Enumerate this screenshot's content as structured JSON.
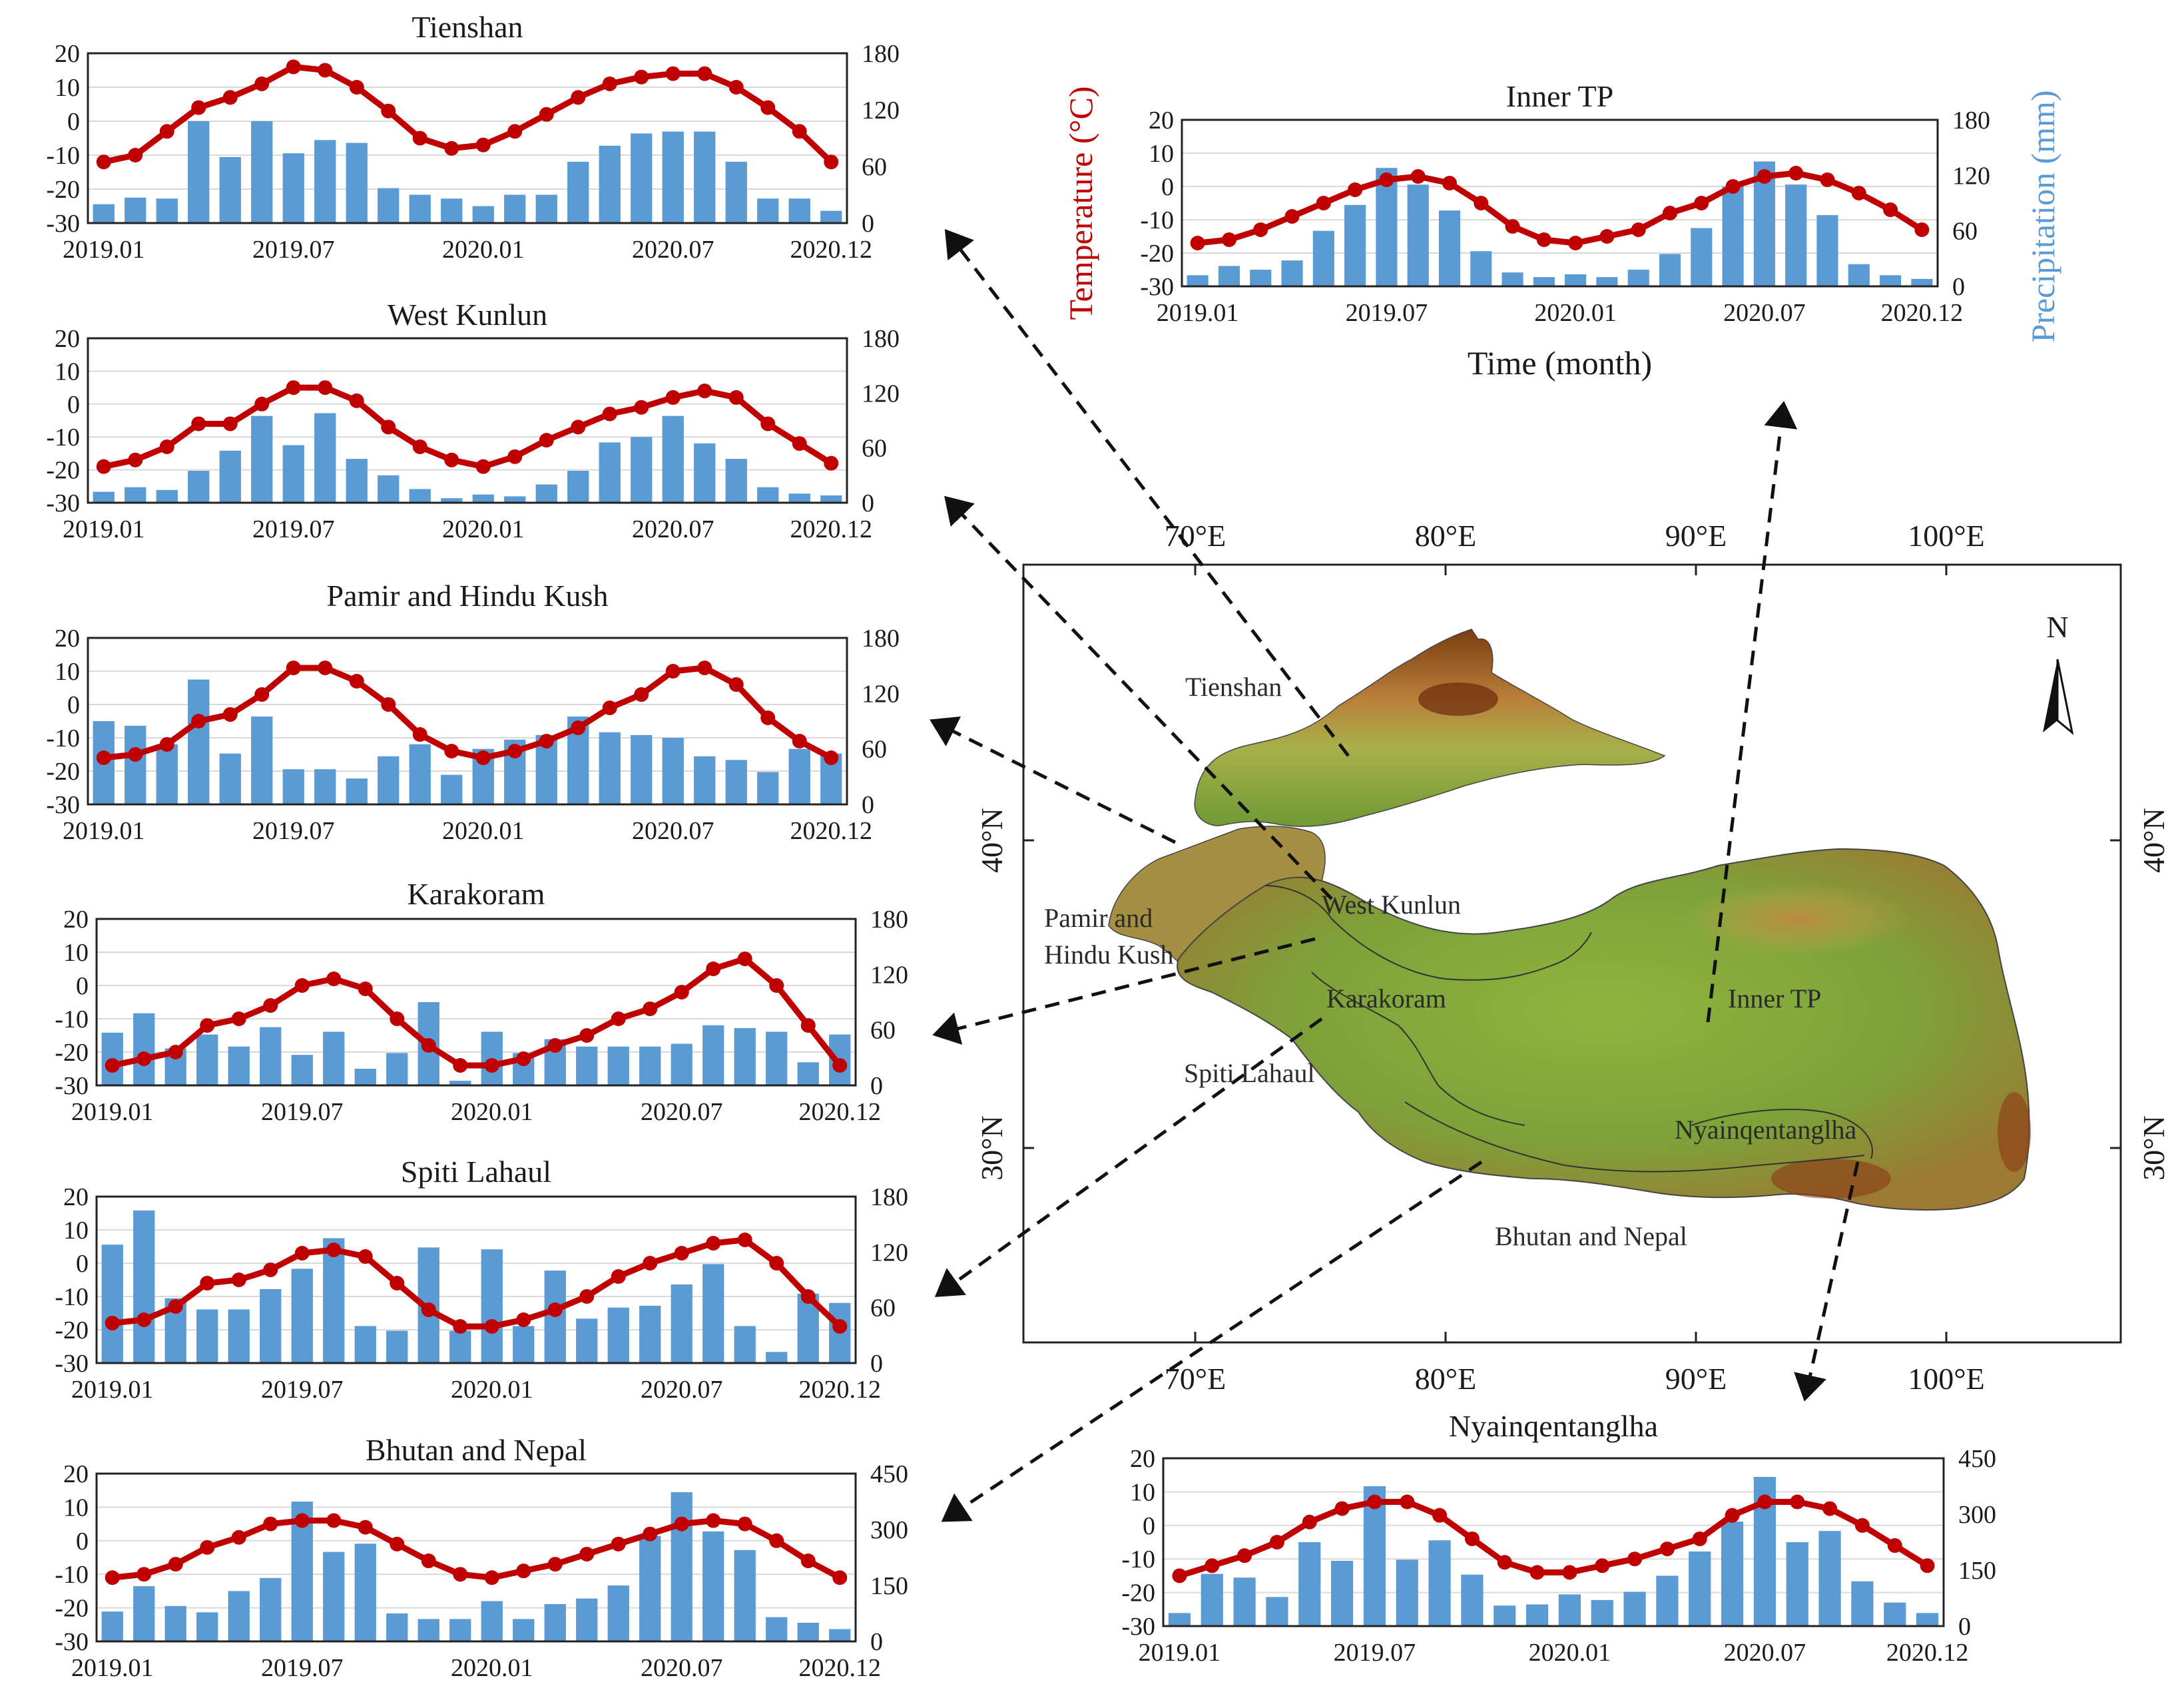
{
  "colors": {
    "bar": "#5b9bd5",
    "line": "#c00000",
    "grid": "#d9d9d9",
    "arrow": "#111111",
    "temp_axis_label": "#c00000",
    "precip_axis_label": "#5b9bd5"
  },
  "chart_data": [
    {
      "id": "tienshan",
      "type": "bar+line",
      "title": "Tienshan",
      "x_tick_labels": [
        "2019.01",
        "2019.07",
        "2020.01",
        "2020.07",
        "2020.12"
      ],
      "y_left": {
        "range": [
          -30,
          20
        ],
        "ticks": [
          "20",
          "10",
          "0",
          "-10",
          "-20",
          "-30"
        ]
      },
      "y_right": {
        "range": [
          0,
          180
        ],
        "ticks": [
          "180",
          "120",
          "60",
          "0"
        ]
      },
      "precipitation_mm": [
        20,
        27,
        26,
        108,
        70,
        108,
        74,
        88,
        85,
        37,
        30,
        26,
        18,
        30,
        30,
        65,
        82,
        95,
        97,
        97,
        65,
        26,
        26,
        13
      ],
      "temperature_c": [
        -12,
        -10,
        -3,
        4,
        7,
        11,
        16,
        15,
        10,
        3,
        -5,
        -8,
        -7,
        -3,
        2,
        7,
        11,
        13,
        14,
        14,
        10,
        4,
        -3,
        -12
      ]
    },
    {
      "id": "west-kunlun",
      "type": "bar+line",
      "title": "West Kunlun",
      "x_tick_labels": [
        "2019.01",
        "2019.07",
        "2020.01",
        "2020.07",
        "2020.12"
      ],
      "y_left": {
        "range": [
          -30,
          20
        ],
        "ticks": [
          "20",
          "10",
          "0",
          "-10",
          "-20",
          "-30"
        ]
      },
      "y_right": {
        "range": [
          0,
          180
        ],
        "ticks": [
          "180",
          "120",
          "60",
          "0"
        ]
      },
      "precipitation_mm": [
        12,
        17,
        14,
        35,
        57,
        95,
        63,
        98,
        48,
        30,
        15,
        5,
        9,
        7,
        20,
        35,
        66,
        72,
        95,
        65,
        48,
        17,
        10,
        8
      ],
      "temperature_c": [
        -19,
        -17,
        -13,
        -6,
        -6,
        0,
        5,
        5,
        1,
        -7,
        -13,
        -17,
        -19,
        -16,
        -11,
        -7,
        -3,
        -1,
        2,
        4,
        2,
        -6,
        -12,
        -18
      ]
    },
    {
      "id": "pamir",
      "type": "bar+line",
      "title": "Pamir and Hindu Kush",
      "x_tick_labels": [
        "2019.01",
        "2019.07",
        "2020.01",
        "2020.07",
        "2020.12"
      ],
      "y_left": {
        "range": [
          -30,
          20
        ],
        "ticks": [
          "20",
          "10",
          "0",
          "-10",
          "-20",
          "-30"
        ]
      },
      "y_right": {
        "range": [
          0,
          180
        ],
        "ticks": [
          "180",
          "120",
          "60",
          "0"
        ]
      },
      "precipitation_mm": [
        90,
        85,
        65,
        135,
        55,
        95,
        38,
        38,
        28,
        52,
        65,
        32,
        60,
        70,
        75,
        95,
        78,
        75,
        72,
        52,
        48,
        35,
        60,
        55
      ],
      "temperature_c": [
        -16,
        -15,
        -12,
        -5,
        -3,
        3,
        11,
        11,
        7,
        0,
        -9,
        -14,
        -16,
        -14,
        -11,
        -7,
        -1,
        3,
        10,
        11,
        6,
        -4,
        -11,
        -16
      ]
    },
    {
      "id": "karakoram",
      "type": "bar+line",
      "title": "Karakoram",
      "x_tick_labels": [
        "2019.01",
        "2019.07",
        "2020.01",
        "2020.07",
        "2020.12"
      ],
      "y_left": {
        "range": [
          -30,
          20
        ],
        "ticks": [
          "20",
          "10",
          "0",
          "-10",
          "-20",
          "-30"
        ]
      },
      "y_right": {
        "range": [
          0,
          180
        ],
        "ticks": [
          "180",
          "120",
          "60",
          "0"
        ]
      },
      "precipitation_mm": [
        57,
        78,
        40,
        55,
        42,
        63,
        33,
        58,
        18,
        35,
        90,
        5,
        58,
        35,
        50,
        42,
        42,
        42,
        45,
        65,
        62,
        58,
        25,
        55
      ],
      "temperature_c": [
        -24,
        -22,
        -20,
        -12,
        -10,
        -6,
        0,
        2,
        -1,
        -10,
        -18,
        -24,
        -24,
        -22,
        -18,
        -15,
        -10,
        -7,
        -2,
        5,
        8,
        0,
        -12,
        -24
      ]
    },
    {
      "id": "spiti",
      "type": "bar+line",
      "title": "Spiti Lahaul",
      "x_tick_labels": [
        "2019.01",
        "2019.07",
        "2020.01",
        "2020.07",
        "2020.12"
      ],
      "y_left": {
        "range": [
          -30,
          20
        ],
        "ticks": [
          "20",
          "10",
          "0",
          "-10",
          "-20",
          "-30"
        ]
      },
      "y_right": {
        "range": [
          0,
          180
        ],
        "ticks": [
          "180",
          "120",
          "60",
          "0"
        ]
      },
      "precipitation_mm": [
        128,
        165,
        70,
        58,
        58,
        80,
        102,
        135,
        40,
        35,
        125,
        35,
        123,
        40,
        100,
        48,
        60,
        62,
        85,
        107,
        40,
        12,
        75,
        65
      ],
      "temperature_c": [
        -18,
        -17,
        -13,
        -6,
        -5,
        -2,
        3,
        4,
        2,
        -6,
        -14,
        -19,
        -19,
        -17,
        -14,
        -10,
        -4,
        0,
        3,
        6,
        7,
        0,
        -10,
        -19
      ]
    },
    {
      "id": "bhutan",
      "type": "bar+line",
      "title": "Bhutan and Nepal",
      "x_tick_labels": [
        "2019.01",
        "2019.07",
        "2020.01",
        "2020.07",
        "2020.12"
      ],
      "y_left": {
        "range": [
          -30,
          20
        ],
        "ticks": [
          "20",
          "10",
          "0",
          "-10",
          "-20",
          "-30"
        ]
      },
      "y_right": {
        "range": [
          0,
          450
        ],
        "ticks": [
          "450",
          "300",
          "150",
          "0"
        ]
      },
      "precipitation_mm": [
        80,
        148,
        95,
        78,
        135,
        170,
        375,
        240,
        262,
        75,
        60,
        60,
        108,
        60,
        100,
        115,
        150,
        283,
        400,
        295,
        245,
        65,
        50,
        33
      ],
      "temperature_c": [
        -11,
        -10,
        -7,
        -2,
        1,
        5,
        6,
        6,
        4,
        -1,
        -6,
        -10,
        -11,
        -9,
        -7,
        -4,
        -1,
        2,
        5,
        6,
        5,
        0,
        -6,
        -11
      ]
    },
    {
      "id": "inner-tp",
      "type": "bar+line",
      "title": "Inner TP",
      "x_tick_labels": [
        "2019.01",
        "2019.07",
        "2020.01",
        "2020.07",
        "2020.12"
      ],
      "y_left": {
        "range": [
          -30,
          20
        ],
        "ticks": [
          "20",
          "10",
          "0",
          "-10",
          "-20",
          "-30"
        ],
        "label": "Temperature (°C)"
      },
      "y_right": {
        "range": [
          0,
          180
        ],
        "ticks": [
          "180",
          "120",
          "60",
          "0"
        ],
        "label": "Precipitation (mm)"
      },
      "x_label": "Time (month)",
      "precipitation_mm": [
        12,
        22,
        18,
        28,
        60,
        88,
        128,
        110,
        82,
        38,
        15,
        10,
        13,
        10,
        18,
        35,
        63,
        108,
        135,
        110,
        77,
        24,
        12,
        8
      ],
      "temperature_c": [
        -17,
        -16,
        -13,
        -9,
        -5,
        -1,
        2,
        3,
        1,
        -5,
        -12,
        -16,
        -17,
        -15,
        -13,
        -8,
        -5,
        0,
        3,
        4,
        2,
        -2,
        -7,
        -13
      ]
    },
    {
      "id": "nyainqentanglha",
      "type": "bar+line",
      "title": "Nyainqentanglha",
      "x_tick_labels": [
        "2019.01",
        "2019.07",
        "2020.01",
        "2020.07",
        "2020.12"
      ],
      "y_left": {
        "range": [
          -30,
          20
        ],
        "ticks": [
          "20",
          "10",
          "0",
          "-10",
          "-20",
          "-30"
        ]
      },
      "y_right": {
        "range": [
          0,
          450
        ],
        "ticks": [
          "450",
          "300",
          "150",
          "0"
        ]
      },
      "precipitation_mm": [
        35,
        140,
        130,
        78,
        225,
        175,
        375,
        178,
        230,
        138,
        55,
        58,
        85,
        70,
        92,
        135,
        200,
        280,
        400,
        225,
        255,
        120,
        63,
        35
      ],
      "temperature_c": [
        -15,
        -12,
        -9,
        -5,
        1,
        5,
        7,
        7,
        3,
        -4,
        -11,
        -14,
        -14,
        -12,
        -10,
        -7,
        -4,
        3,
        7,
        7,
        5,
        0,
        -6,
        -12
      ]
    }
  ],
  "map": {
    "lon_labels": [
      "70°E",
      "80°E",
      "90°E",
      "100°E"
    ],
    "lat_labels": [
      "40°N",
      "30°N"
    ],
    "north_label": "N",
    "regions": [
      {
        "id": "tienshan",
        "label": "Tienshan"
      },
      {
        "id": "pamir-1",
        "label": "Pamir and"
      },
      {
        "id": "pamir-2",
        "label": "Hindu Kush"
      },
      {
        "id": "west-kunlun",
        "label": "West Kunlun"
      },
      {
        "id": "karakoram",
        "label": "Karakoram"
      },
      {
        "id": "inner-tp",
        "label": "Inner TP"
      },
      {
        "id": "spiti",
        "label": "Spiti Lahaul"
      },
      {
        "id": "nyainqentanglha",
        "label": "Nyainqentanglha"
      },
      {
        "id": "bhutan",
        "label": "Bhutan and Nepal"
      }
    ]
  }
}
